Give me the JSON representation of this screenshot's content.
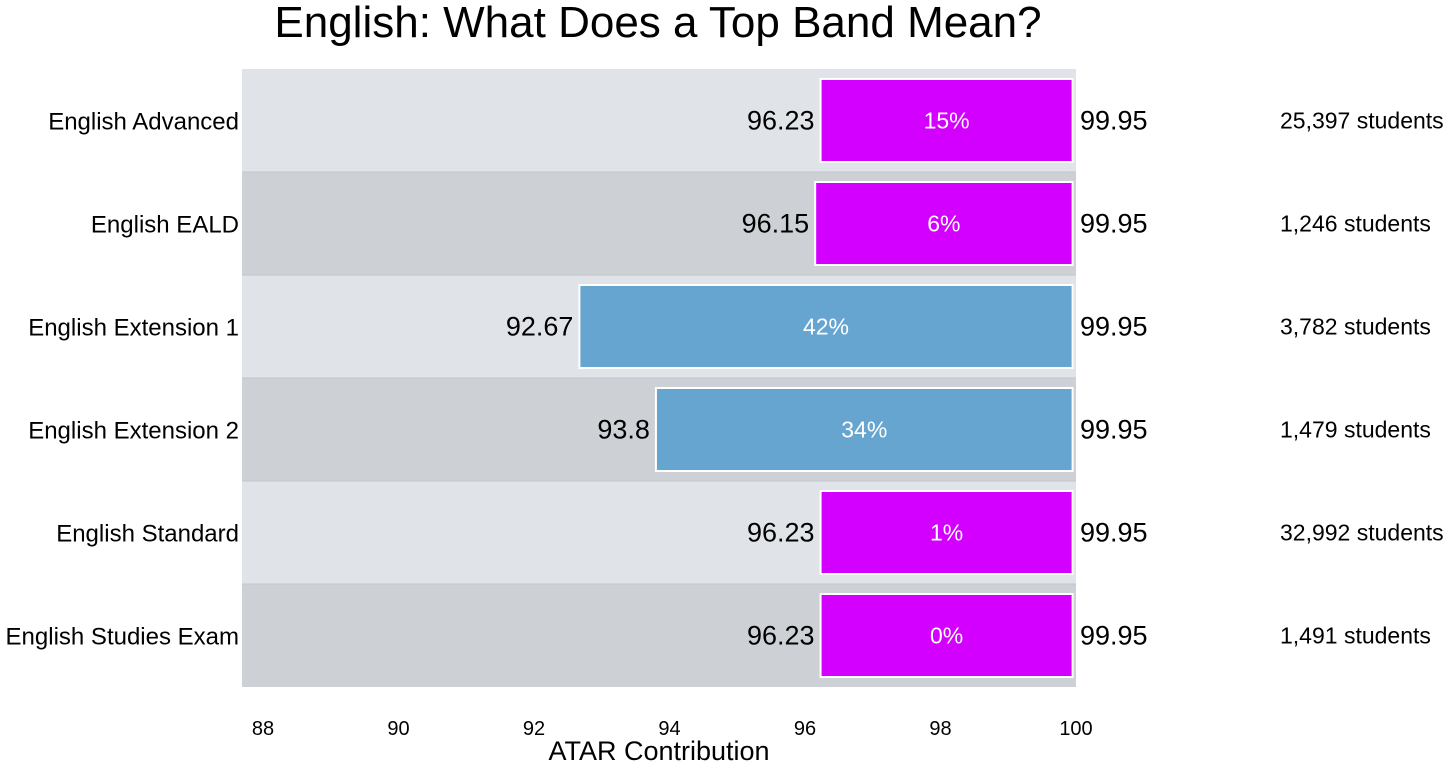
{
  "chart_data": {
    "type": "bar",
    "orientation": "horizontal",
    "title": "English: What Does a Top Band Mean?",
    "xlabel": "ATAR Contribution",
    "xlim": [
      88,
      100
    ],
    "xticks": [
      "88",
      "90",
      "92",
      "94",
      "96",
      "98",
      "100"
    ],
    "grid": false,
    "colors": {
      "highlight": "#d400ff",
      "normal": "#67a5d1",
      "row_light": "#e0e4e9",
      "row_dark": "#cdd1d5"
    },
    "rows": [
      {
        "category": "English Advanced",
        "start": 96.23,
        "start_label": "96.23",
        "end": 99.95,
        "end_label": "99.95",
        "percent": "15%",
        "students": "25,397 students",
        "color": "#d400ff"
      },
      {
        "category": "English EALD",
        "start": 96.15,
        "start_label": "96.15",
        "end": 99.95,
        "end_label": "99.95",
        "percent": "6%",
        "students": "1,246 students",
        "color": "#d400ff"
      },
      {
        "category": "English Extension 1",
        "start": 92.67,
        "start_label": "92.67",
        "end": 99.95,
        "end_label": "99.95",
        "percent": "42%",
        "students": "3,782 students",
        "color": "#67a5d1"
      },
      {
        "category": "English Extension 2",
        "start": 93.8,
        "start_label": "93.8",
        "end": 99.95,
        "end_label": "99.95",
        "percent": "34%",
        "students": "1,479 students",
        "color": "#67a5d1"
      },
      {
        "category": "English Standard",
        "start": 96.23,
        "start_label": "96.23",
        "end": 99.95,
        "end_label": "99.95",
        "percent": "1%",
        "students": "32,992 students",
        "color": "#d400ff"
      },
      {
        "category": "English Studies Exam",
        "start": 96.23,
        "start_label": "96.23",
        "end": 99.95,
        "end_label": "99.95",
        "percent": "0%",
        "students": "1,491 students",
        "color": "#d400ff"
      }
    ]
  }
}
